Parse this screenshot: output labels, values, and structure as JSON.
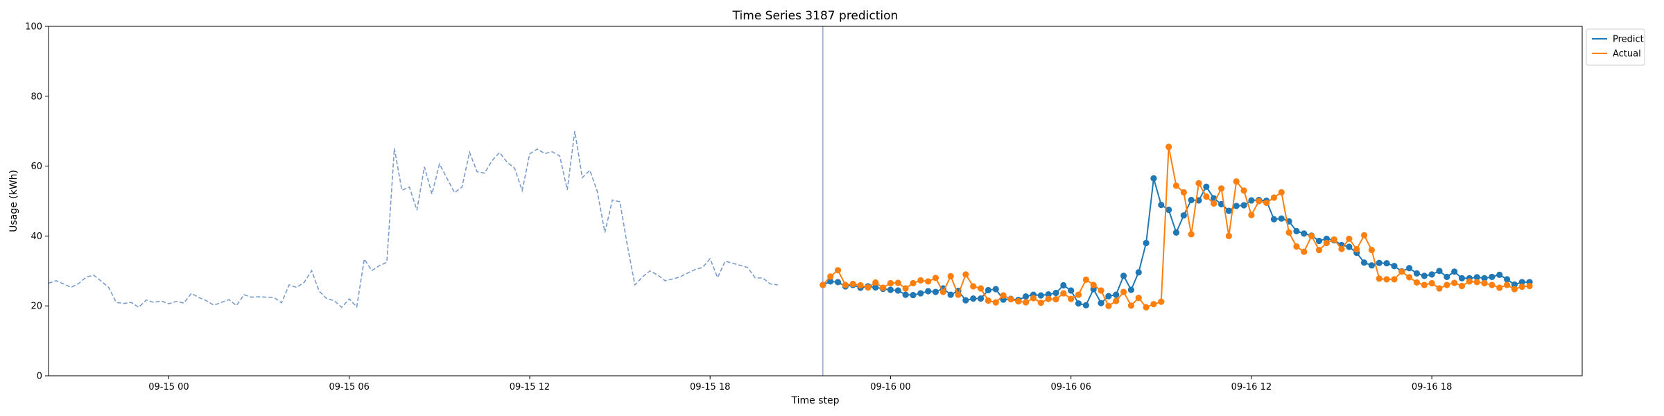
{
  "chart_data": {
    "type": "line",
    "title": "Time Series 3187 prediction",
    "xlabel": "Time step",
    "ylabel": "Usage (kWh)",
    "ylim": [
      0,
      100
    ],
    "yticks": [
      0,
      20,
      40,
      60,
      80,
      100
    ],
    "x_start": "2023-09-14 20:00",
    "x_end": "2023-09-16 23:00",
    "x_step_minutes": 15,
    "xticks": [
      {
        "label": "09-15 00",
        "at": "2023-09-15 00:00"
      },
      {
        "label": "09-15 06",
        "at": "2023-09-15 06:00"
      },
      {
        "label": "09-15 12",
        "at": "2023-09-15 12:00"
      },
      {
        "label": "09-15 18",
        "at": "2023-09-15 18:00"
      },
      {
        "label": "09-16 00",
        "at": "2023-09-16 00:00"
      },
      {
        "label": "09-16 06",
        "at": "2023-09-16 06:00"
      },
      {
        "label": "09-16 12",
        "at": "2023-09-16 12:00"
      },
      {
        "label": "09-16 18",
        "at": "2023-09-16 18:00"
      }
    ],
    "vertical_line_at": "2023-09-15 21:45",
    "legend_position": "top-right",
    "grid": false,
    "series": [
      {
        "name": "",
        "style": "dashed",
        "color": "#7b9cc9",
        "start": "2023-09-14 20:00",
        "values": [
          26.5,
          27.2,
          26.3,
          25.3,
          26.4,
          28.2,
          28.8,
          27.1,
          25.3,
          21.0,
          20.7,
          21.0,
          19.6,
          21.7,
          21.0,
          21.4,
          20.6,
          21.3,
          20.8,
          23.6,
          22.4,
          21.5,
          20.2,
          21.0,
          21.8,
          20.1,
          23.2,
          22.5,
          22.6,
          22.5,
          22.4,
          20.9,
          26.0,
          25.3,
          26.7,
          30.1,
          24.2,
          22.1,
          21.5,
          19.6,
          22.0,
          19.7,
          33.4,
          30.1,
          31.5,
          32.5,
          65.1,
          53.1,
          54.0,
          47.4,
          59.8,
          52.0,
          60.6,
          56.5,
          52.4,
          54.0,
          64.0,
          58.4,
          58.0,
          61.6,
          63.9,
          61.1,
          59.4,
          53.0,
          63.5,
          64.9,
          63.6,
          64.1,
          62.9,
          53.2,
          70.0,
          56.7,
          58.8,
          52.7,
          41.0,
          50.3,
          49.8,
          37.2,
          26.0,
          28.3,
          30.0,
          28.9,
          27.2,
          27.7,
          28.3,
          29.4,
          30.4,
          31.0,
          33.5,
          28.1,
          32.8,
          32.2,
          31.6,
          31.0,
          28.0,
          28.0,
          26.3,
          26.0
        ]
      },
      {
        "name": "Predict",
        "style": "line-dots",
        "color": "#1f77b4",
        "start": "2023-09-15 21:45",
        "values": [
          26.0,
          27.0,
          26.8,
          25.6,
          26.0,
          25.2,
          25.6,
          25.3,
          24.9,
          24.6,
          24.4,
          23.2,
          23.1,
          23.6,
          24.2,
          24.0,
          25.0,
          23.2,
          24.3,
          21.6,
          22.1,
          22.1,
          24.5,
          24.8,
          21.8,
          22.0,
          21.7,
          22.7,
          23.2,
          23.0,
          23.3,
          23.7,
          25.9,
          24.4,
          20.7,
          20.2,
          24.8,
          20.8,
          22.8,
          23.2,
          28.6,
          24.6,
          29.6,
          38.0,
          56.5,
          48.9,
          47.5,
          41.0,
          45.9,
          50.3,
          50.2,
          54.1,
          50.8,
          49.1,
          47.2,
          48.6,
          48.8,
          50.2,
          50.3,
          50.1,
          44.8,
          45.0,
          44.2,
          41.4,
          40.7,
          40.1,
          38.6,
          39.2,
          38.8,
          37.4,
          36.9,
          35.2,
          32.4,
          31.6,
          32.3,
          32.2,
          31.4,
          29.9,
          30.8,
          29.3,
          28.6,
          29.0,
          30.0,
          28.3,
          29.8,
          27.9,
          27.9,
          28.2,
          27.9,
          28.3,
          28.9,
          27.6,
          26.1,
          26.8,
          26.8
        ]
      },
      {
        "name": "Actual",
        "style": "line-dots",
        "color": "#ff7f0e",
        "start": "2023-09-15 21:45",
        "values": [
          26.0,
          28.4,
          30.2,
          26.0,
          26.3,
          25.9,
          25.3,
          26.7,
          25.2,
          26.5,
          26.6,
          25.0,
          26.5,
          27.3,
          27.0,
          28.0,
          24.0,
          28.5,
          23.2,
          29.0,
          25.6,
          25.0,
          21.5,
          21.0,
          23.0,
          21.9,
          21.3,
          21.0,
          22.2,
          20.9,
          22.0,
          21.9,
          23.6,
          22.0,
          23.2,
          27.5,
          26.0,
          24.4,
          20.0,
          21.4,
          24.0,
          20.1,
          22.3,
          19.6,
          20.5,
          21.2,
          65.5,
          54.4,
          52.5,
          40.5,
          55.1,
          51.3,
          49.3,
          53.6,
          40.0,
          55.6,
          53.0,
          46.0,
          50.0,
          49.5,
          51.0,
          52.5,
          41.0,
          37.0,
          35.5,
          40.0,
          36.0,
          38.0,
          39.0,
          36.3,
          39.2,
          36.2,
          40.2,
          36.0,
          27.8,
          27.6,
          27.6,
          29.8,
          28.2,
          26.7,
          26.0,
          26.5,
          25.0,
          26.0,
          26.6,
          25.7,
          27.0,
          26.8,
          26.5,
          26.0,
          25.2,
          26.0,
          24.8,
          25.5,
          25.7
        ]
      }
    ]
  }
}
